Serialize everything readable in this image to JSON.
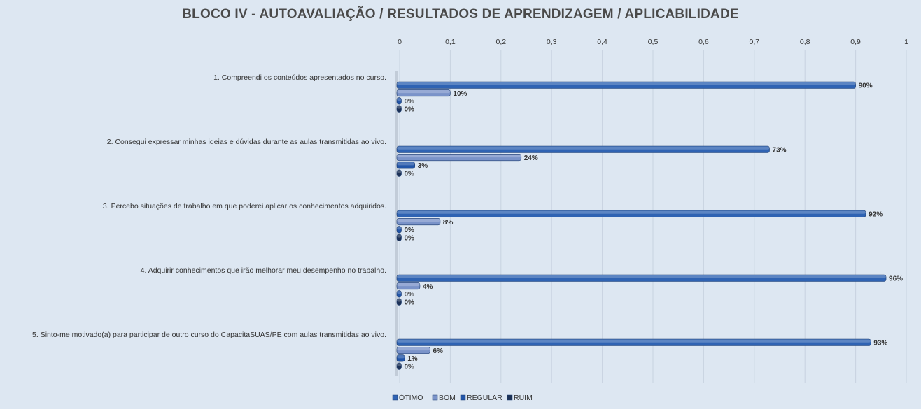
{
  "colors": {
    "otimo": "#2f63b3",
    "bom": "#7a93c9",
    "regular": "#2255a8",
    "ruim": "#1c3156",
    "background": "#dde7f2",
    "grid": "#c8d3e0",
    "text": "#333333"
  },
  "chart_data": {
    "type": "bar",
    "orientation": "horizontal",
    "title": "BLOCO IV - AUTOAVALIAÇÃO / RESULTADOS  DE APRENDIZAGEM  / APLICABILIDADE",
    "x_ticks": [
      "0",
      "0,1",
      "0,2",
      "0,3",
      "0,4",
      "0,5",
      "0,6",
      "0,7",
      "0,8",
      "0,9",
      "1"
    ],
    "xlim": [
      0,
      1
    ],
    "x_axis_position": "top",
    "grid": true,
    "legend_position": "bottom",
    "categories": [
      "1. Compreendi os conteúdos apresentados no curso.",
      "2. Consegui expressar minhas ideias e dúvidas durante as aulas transmitidas ao vivo.",
      "3. Percebo situações de trabalho em que poderei aplicar os conhecimentos adquiridos.",
      "4. Adquirir conhecimentos que irão melhorar meu desempenho no trabalho.",
      "5. Sinto-me motivado(a) para participar de outro curso do CapacitaSUAS/PE com aulas transmitidas ao vivo."
    ],
    "series": [
      {
        "name": "ÓTIMO",
        "values": [
          0.9,
          0.73,
          0.92,
          0.96,
          0.93
        ],
        "labels": [
          "90%",
          "73%",
          "92%",
          "96%",
          "93%"
        ]
      },
      {
        "name": "BOM",
        "values": [
          0.1,
          0.24,
          0.08,
          0.04,
          0.06
        ],
        "labels": [
          "10%",
          "24%",
          "8%",
          "4%",
          "6%"
        ]
      },
      {
        "name": "REGULAR",
        "values": [
          0.0,
          0.03,
          0.0,
          0.0,
          0.01
        ],
        "labels": [
          "0%",
          "3%",
          "0%",
          "0%",
          "1%"
        ]
      },
      {
        "name": "RUIM",
        "values": [
          0.0,
          0.0,
          0.0,
          0.0,
          0.0
        ],
        "labels": [
          "0%",
          "0%",
          "0%",
          "0%",
          "0%"
        ]
      }
    ]
  }
}
